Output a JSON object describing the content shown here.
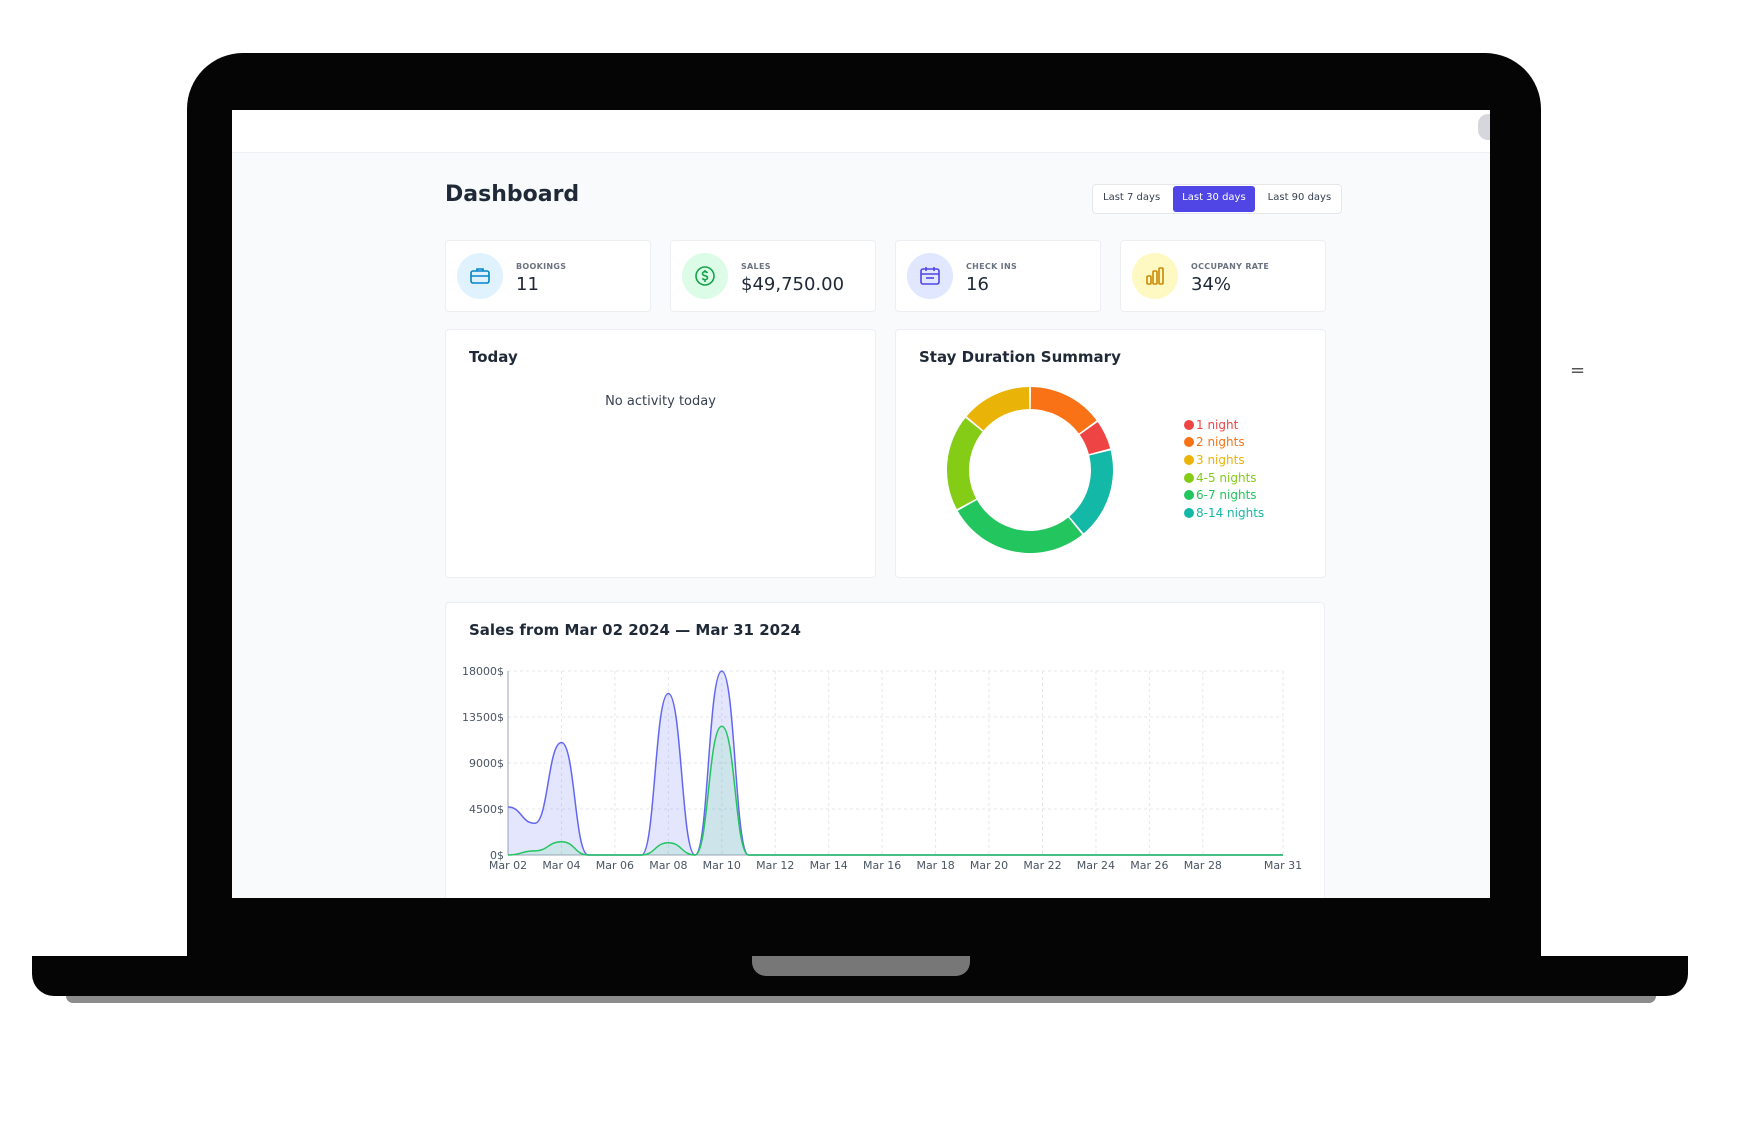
{
  "header": {
    "title": "Dashboard",
    "ranges": [
      {
        "label": "Last 7 days",
        "active": false
      },
      {
        "label": "Last 30 days",
        "active": true
      },
      {
        "label": "Last 90 days",
        "active": false
      }
    ]
  },
  "stats": [
    {
      "label": "BOOKINGS",
      "value": "11",
      "icon": "briefcase-icon",
      "bg": "#e0f2fe",
      "fg": "#0284c7"
    },
    {
      "label": "SALES",
      "value": "$49,750.00",
      "icon": "dollar-icon",
      "bg": "#dcfce7",
      "fg": "#16a34a"
    },
    {
      "label": "CHECK INS",
      "value": "16",
      "icon": "calendar-icon",
      "bg": "#e0e7ff",
      "fg": "#4f46e5"
    },
    {
      "label": "OCCUPANY RATE",
      "value": "34%",
      "icon": "bar-chart-icon",
      "bg": "#fef9c3",
      "fg": "#ca8a04"
    }
  ],
  "today": {
    "title": "Today",
    "empty_text": "No activity today"
  },
  "stay_duration": {
    "title": "Stay Duration Summary"
  },
  "sales": {
    "title": "Sales from Mar 02 2024 — Mar 31 2024"
  },
  "chart_data": [
    {
      "type": "pie",
      "title": "Stay Duration Summary",
      "categories": [
        "1 night",
        "2 nights",
        "3 nights",
        "4-5 nights",
        "6-7 nights",
        "8-14 nights"
      ],
      "values": [
        6,
        15,
        14,
        19,
        28,
        18
      ],
      "colors": [
        "#ef4444",
        "#f97316",
        "#eab308",
        "#84cc16",
        "#22c55e",
        "#14b8a6"
      ],
      "order": [
        1,
        0,
        5,
        4,
        3,
        2
      ],
      "legend": "right"
    },
    {
      "type": "area",
      "title": "Sales from Mar 02 2024 — Mar 31 2024",
      "categories": [
        "Mar 02",
        "Mar 03",
        "Mar 04",
        "Mar 05",
        "Mar 06",
        "Mar 07",
        "Mar 08",
        "Mar 09",
        "Mar 10",
        "Mar 11",
        "Mar 12",
        "Mar 13",
        "Mar 14",
        "Mar 15",
        "Mar 16",
        "Mar 17",
        "Mar 18",
        "Mar 19",
        "Mar 20",
        "Mar 21",
        "Mar 22",
        "Mar 23",
        "Mar 24",
        "Mar 25",
        "Mar 26",
        "Mar 27",
        "Mar 28",
        "Mar 29",
        "Mar 30",
        "Mar 31"
      ],
      "tick_labels": [
        "Mar 02",
        "Mar 04",
        "Mar 06",
        "Mar 08",
        "Mar 10",
        "Mar 12",
        "Mar 14",
        "Mar 16",
        "Mar 18",
        "Mar 20",
        "Mar 22",
        "Mar 24",
        "Mar 26",
        "Mar 28",
        "Mar 31"
      ],
      "y_ticks": [
        "0$",
        "4500$",
        "9000$",
        "13500$",
        "18000$"
      ],
      "ylim": [
        0,
        18000
      ],
      "series": [
        {
          "color": "#6366f1",
          "fill": "rgba(129,140,248,0.22)",
          "values": [
            4700,
            3100,
            11000,
            0,
            0,
            0,
            15800,
            0,
            18000,
            0,
            0,
            0,
            0,
            0,
            0,
            0,
            0,
            0,
            0,
            0,
            0,
            0,
            0,
            0,
            0,
            0,
            0,
            0,
            0,
            0
          ]
        },
        {
          "color": "#22c55e",
          "fill": "rgba(74,222,128,0.15)",
          "values": [
            0,
            400,
            1300,
            0,
            0,
            0,
            1200,
            0,
            12600,
            0,
            0,
            0,
            0,
            0,
            0,
            0,
            0,
            0,
            0,
            0,
            0,
            0,
            0,
            0,
            0,
            0,
            0,
            0,
            0,
            0
          ]
        }
      ],
      "grid": true
    }
  ]
}
